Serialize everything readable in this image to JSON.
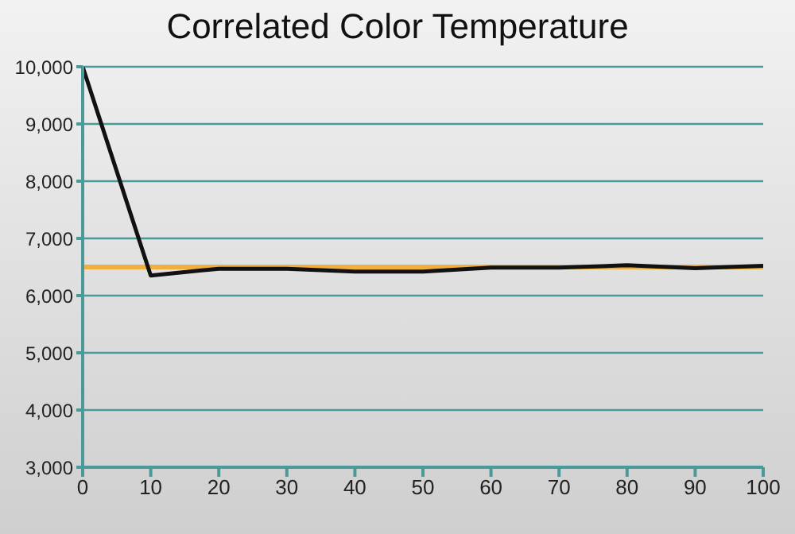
{
  "chart_data": {
    "type": "line",
    "title": "Correlated Color Temperature",
    "x": [
      0,
      10,
      20,
      30,
      40,
      50,
      60,
      70,
      80,
      90,
      100
    ],
    "series": [
      {
        "color": "#111111",
        "values": [
          10000,
          6350,
          6470,
          6470,
          6420,
          6420,
          6490,
          6490,
          6530,
          6480,
          6520
        ]
      }
    ],
    "xlim": [
      0,
      100
    ],
    "xticks": [
      0,
      10,
      20,
      30,
      40,
      50,
      60,
      70,
      80,
      90,
      100
    ],
    "ylim": [
      3000,
      10000
    ],
    "yticks": [
      {
        "value": 3000,
        "label": "3,000"
      },
      {
        "value": 4000,
        "label": "4,000"
      },
      {
        "value": 5000,
        "label": "5,000"
      },
      {
        "value": 6000,
        "label": "6,000"
      },
      {
        "value": 7000,
        "label": "7,000"
      },
      {
        "value": 8000,
        "label": "8,000"
      },
      {
        "value": 9000,
        "label": "9,000"
      },
      {
        "value": 10000,
        "label": "10,000"
      }
    ],
    "ref_lines": [
      {
        "axis": "y",
        "value": 6500,
        "color": "#f0b040"
      }
    ],
    "grid": "y",
    "marker": "none",
    "line_style": "solid"
  }
}
